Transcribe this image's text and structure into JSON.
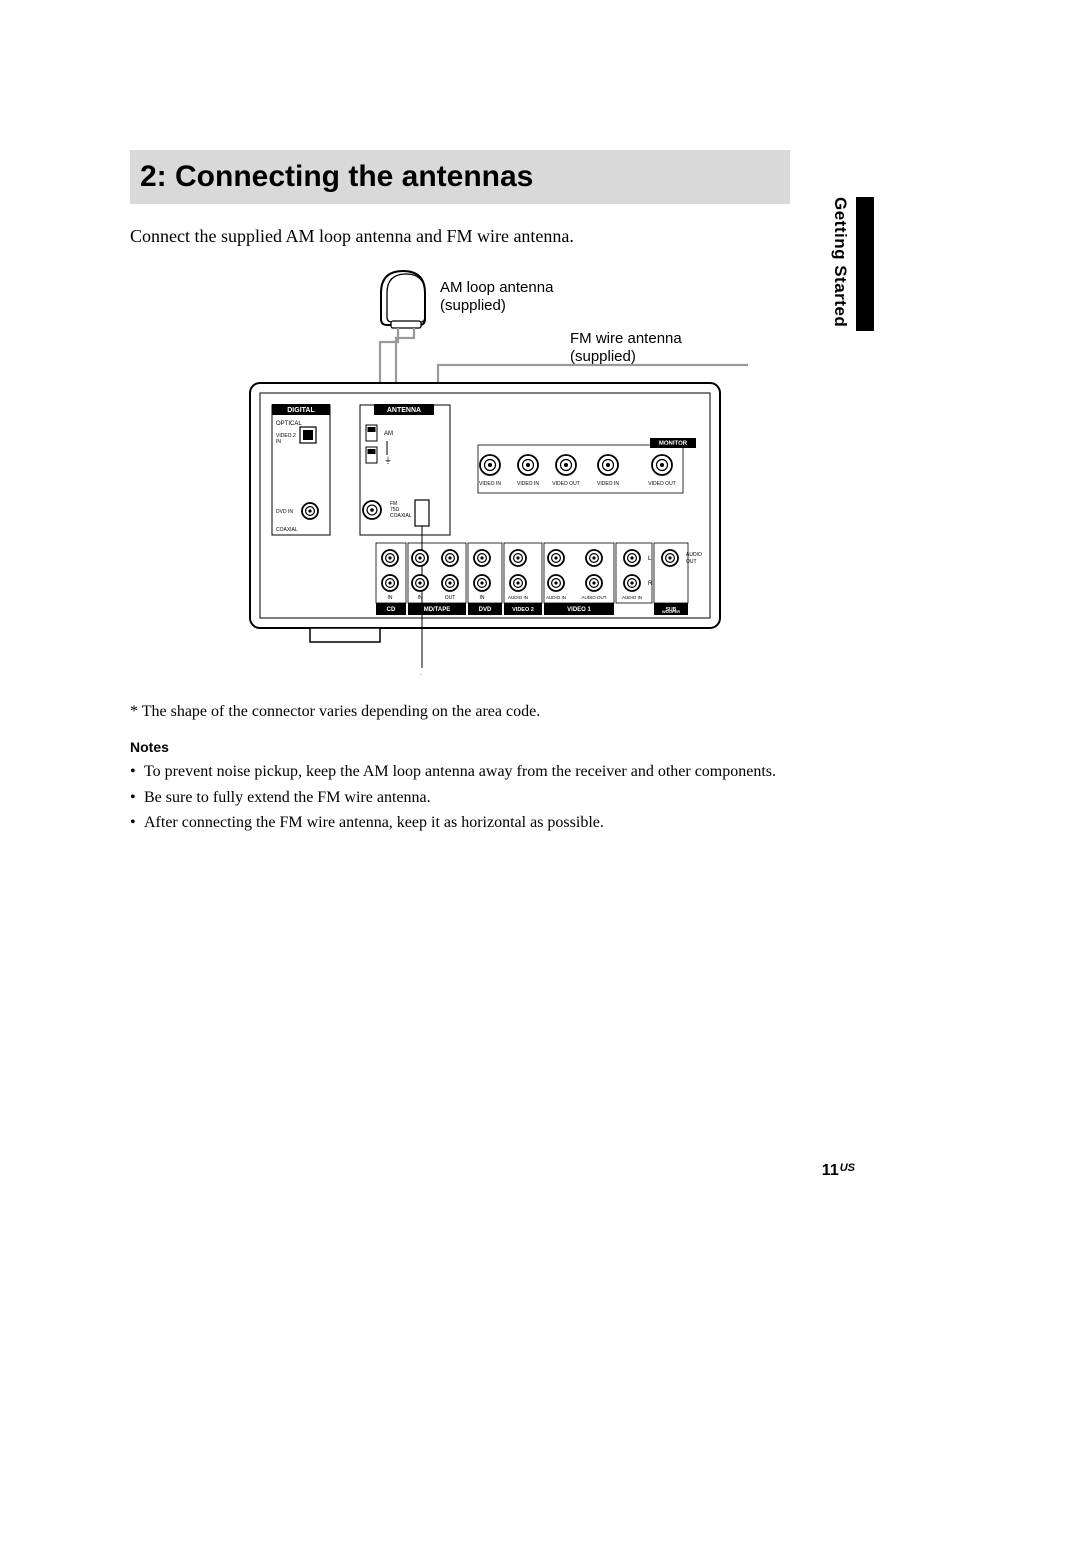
{
  "side_label": "Getting Started",
  "title": "2: Connecting the antennas",
  "intro": "Connect the supplied AM loop antenna and FM wire antenna.",
  "footnote": "* The shape of the connector varies depending on the area code.",
  "notes_heading": "Notes",
  "notes": [
    "To prevent noise pickup, keep the AM loop antenna away from the receiver and other components.",
    "Be sure to fully extend the FM wire antenna.",
    "After connecting the FM wire antenna, keep it as horizontal as possible."
  ],
  "page_number": "11",
  "page_region": "US",
  "diagram": {
    "am_label": "AM loop antenna (supplied)",
    "fm_label": "FM wire antenna (supplied)",
    "asterisk": "*",
    "panel_labels": {
      "digital": "DIGITAL",
      "antenna": "ANTENNA",
      "monitor": "MONITOR",
      "optical": "OPTICAL",
      "video2_in": "VIDEO 2 IN",
      "dvd_in": "DVD IN",
      "coaxial": "COAXIAL",
      "am": "AM",
      "ground": "⏚",
      "fm": "FM 75Ω COAXIAL",
      "cd": "CD",
      "mdtape": "MD/TAPE",
      "dvd": "DVD",
      "video2": "VIDEO 2",
      "video1": "VIDEO 1",
      "subwoofer": "SUB WOOFER",
      "video_in": "VIDEO IN",
      "video_out": "VIDEO OUT",
      "audio_in": "AUDIO IN",
      "audio_out": "AUDIO OUT",
      "in": "IN",
      "out": "OUT",
      "L": "L",
      "R": "R"
    },
    "colors": {
      "panel_stroke": "#000000",
      "panel_fill": "#ffffff",
      "label_bg": "#000000",
      "label_fg": "#ffffff",
      "wire": "#9a9a9a",
      "fm_wire": "#9a9a9a"
    }
  }
}
